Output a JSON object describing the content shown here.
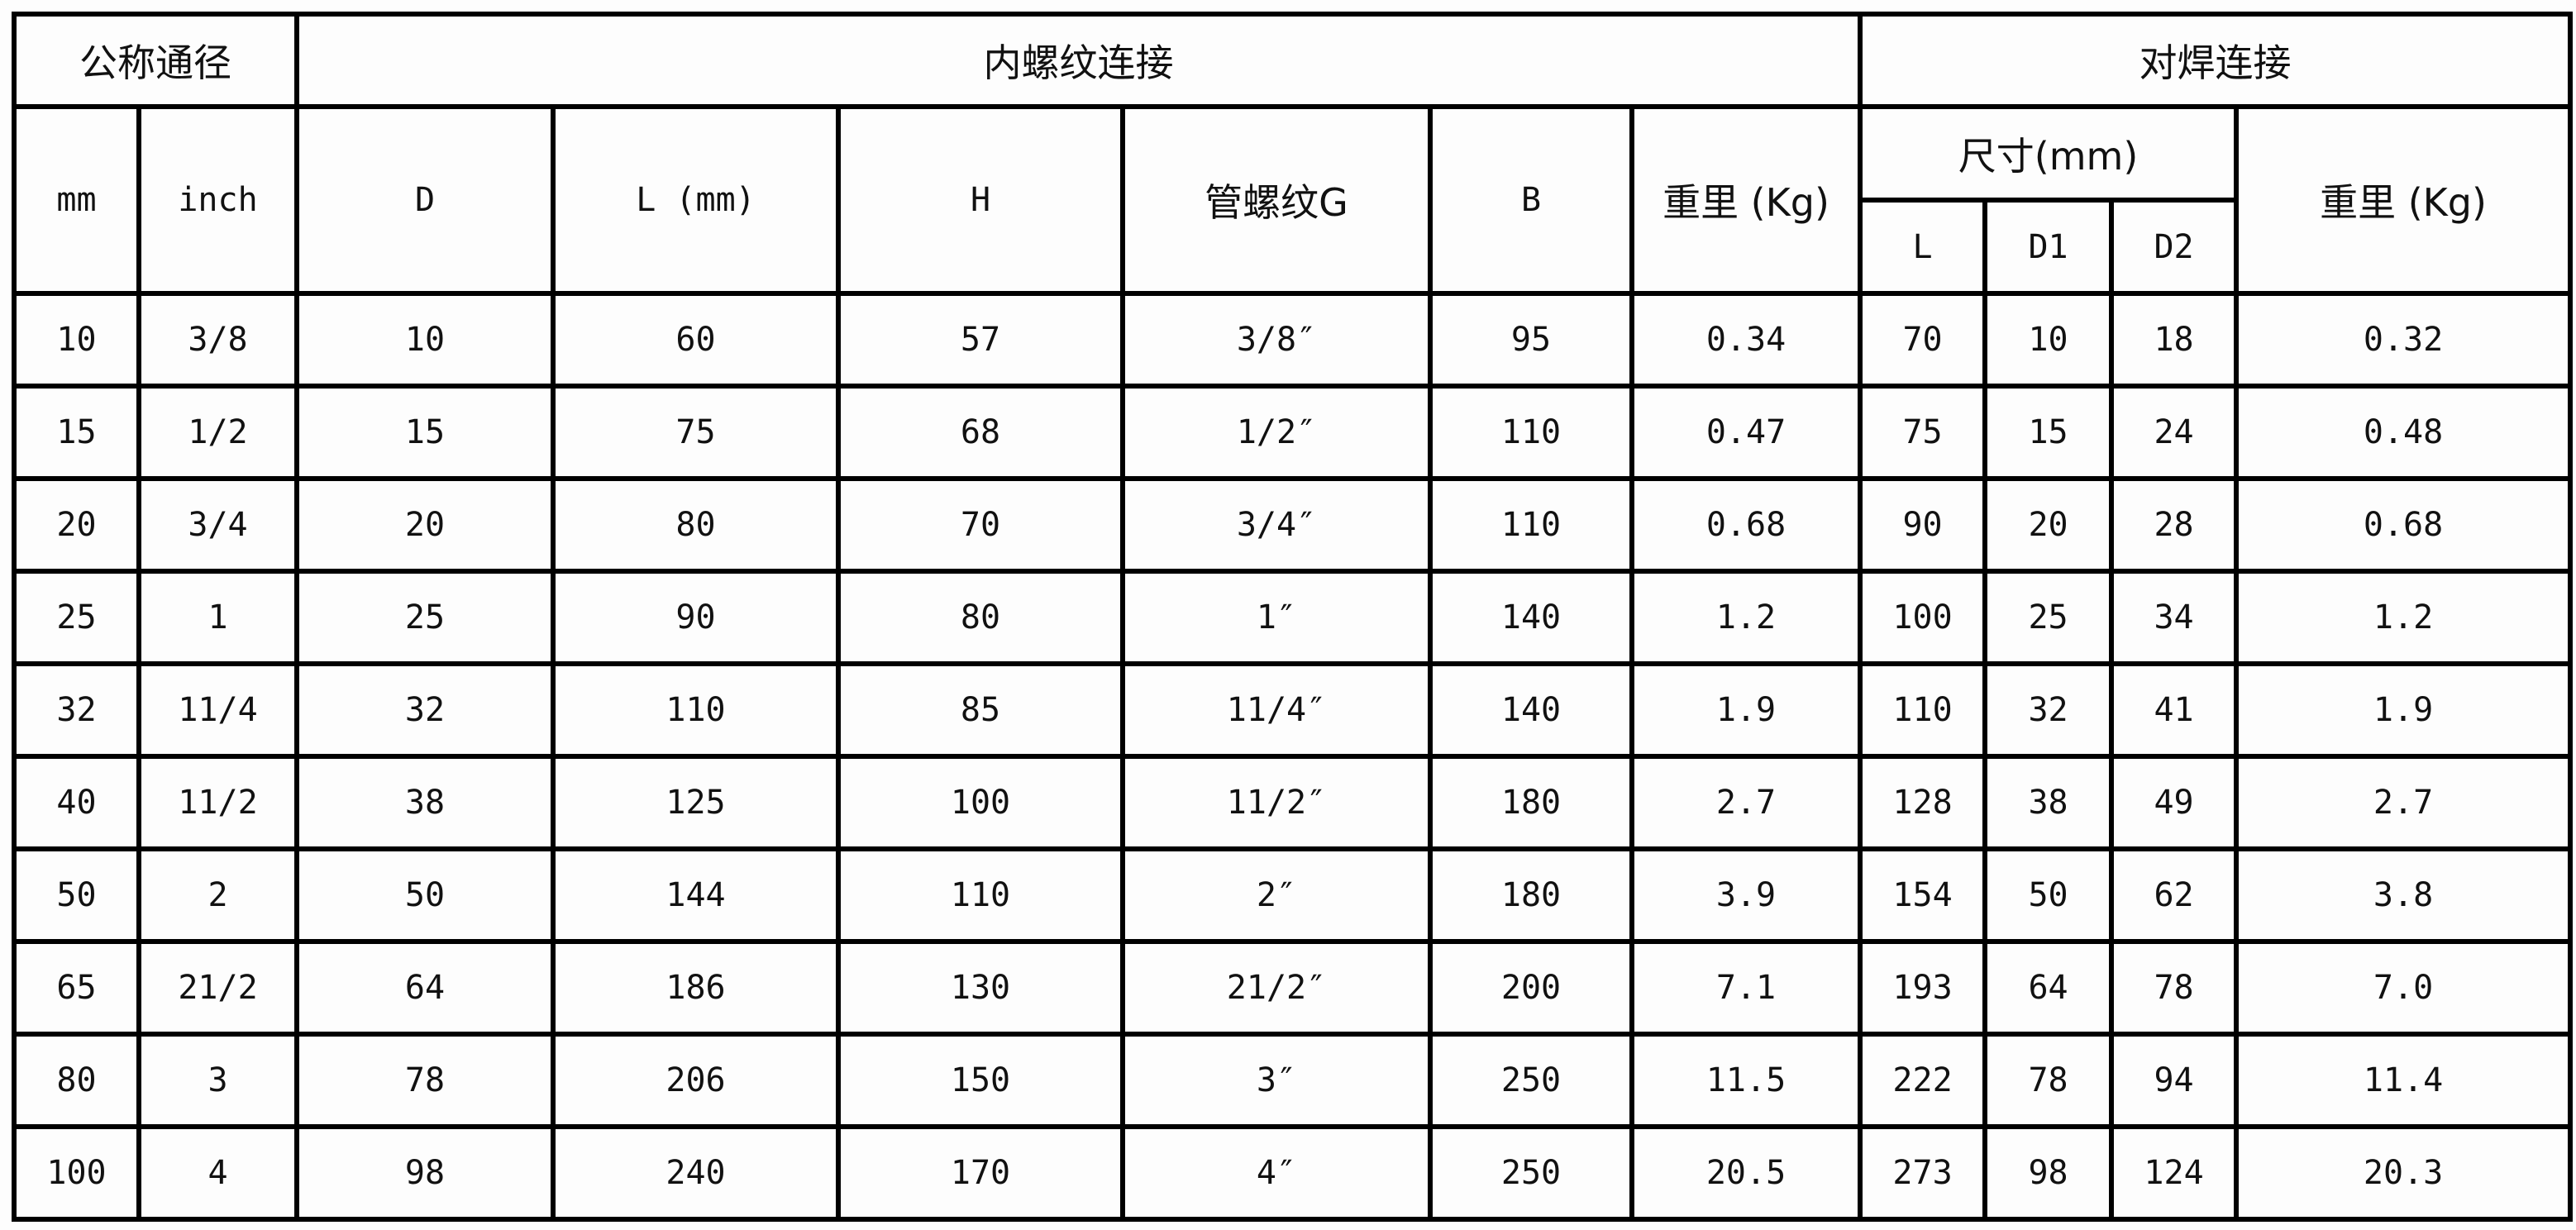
{
  "header": {
    "group_nominal": "公称通径",
    "group_thread": "内螺纹连接",
    "group_weld": "对焊连接",
    "mm": "mm",
    "inch": "inch",
    "D": "D",
    "L_mm": "L (mm)",
    "H": "H",
    "pipe_thread": "管螺纹G",
    "B": "B",
    "weight_thread": "重里 (Kg)",
    "size_mm": "尺寸(mm)",
    "weight_weld": "重里 (Kg)",
    "weld_L": "L",
    "weld_D1": "D1",
    "weld_D2": "D2"
  },
  "columns": [
    "mm",
    "inch",
    "D",
    "L",
    "H",
    "G",
    "B",
    "weight",
    "weld_L",
    "weld_D1",
    "weld_D2",
    "weld_weight"
  ],
  "rows": [
    [
      "10",
      "3/8",
      "10",
      "60",
      "57",
      "3/8″",
      "95",
      "0.34",
      "70",
      "10",
      "18",
      "0.32"
    ],
    [
      "15",
      "1/2",
      "15",
      "75",
      "68",
      "1/2″",
      "110",
      "0.47",
      "75",
      "15",
      "24",
      "0.48"
    ],
    [
      "20",
      "3/4",
      "20",
      "80",
      "70",
      "3/4″",
      "110",
      "0.68",
      "90",
      "20",
      "28",
      "0.68"
    ],
    [
      "25",
      "1",
      "25",
      "90",
      "80",
      "1″",
      "140",
      "1.2",
      "100",
      "25",
      "34",
      "1.2"
    ],
    [
      "32",
      "11/4",
      "32",
      "110",
      "85",
      "11/4″",
      "140",
      "1.9",
      "110",
      "32",
      "41",
      "1.9"
    ],
    [
      "40",
      "11/2",
      "38",
      "125",
      "100",
      "11/2″",
      "180",
      "2.7",
      "128",
      "38",
      "49",
      "2.7"
    ],
    [
      "50",
      "2",
      "50",
      "144",
      "110",
      "2″",
      "180",
      "3.9",
      "154",
      "50",
      "62",
      "3.8"
    ],
    [
      "65",
      "21/2",
      "64",
      "186",
      "130",
      "21/2″",
      "200",
      "7.1",
      "193",
      "64",
      "78",
      "7.0"
    ],
    [
      "80",
      "3",
      "78",
      "206",
      "150",
      "3″",
      "250",
      "11.5",
      "222",
      "78",
      "94",
      "11.4"
    ],
    [
      "100",
      "4",
      "98",
      "240",
      "170",
      "4″",
      "250",
      "20.5",
      "273",
      "98",
      "124",
      "20.3"
    ]
  ]
}
